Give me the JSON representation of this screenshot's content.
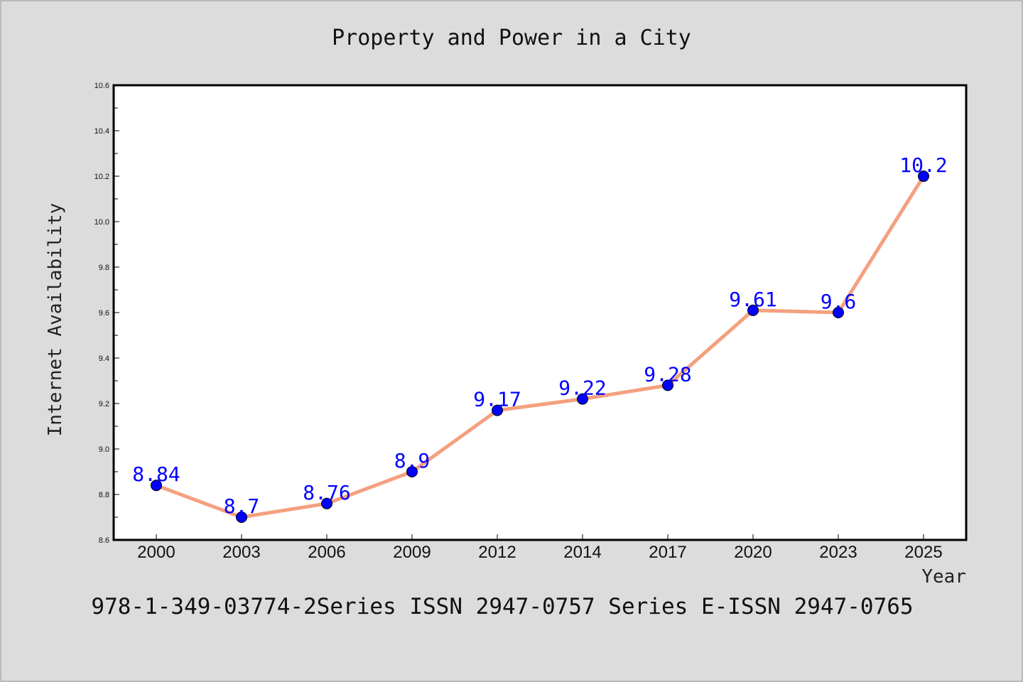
{
  "chart_data": {
    "type": "line",
    "title": "Property and Power in a City",
    "xlabel": "Year",
    "ylabel": "Internet Availability",
    "categories": [
      "2000",
      "2003",
      "2006",
      "2009",
      "2012",
      "2014",
      "2017",
      "2020",
      "2023",
      "2025"
    ],
    "values": [
      8.84,
      8.7,
      8.76,
      8.9,
      9.17,
      9.22,
      9.28,
      9.61,
      9.6,
      10.2
    ],
    "data_labels": [
      "8.84",
      "8.7",
      "8.76",
      "8.9",
      "9.17",
      "9.22",
      "9.28",
      "9.61",
      "9.6",
      "10.2"
    ],
    "ylim": [
      8.6,
      10.6
    ],
    "yticks": [
      "8.6",
      "8.8",
      "9.0",
      "9.2",
      "9.4",
      "9.6",
      "9.8",
      "10.0",
      "10.2",
      "10.4",
      "10.6"
    ],
    "line_color": "#f4a07f",
    "marker_color": "#0000ff",
    "label_color": "#0000ff",
    "grid": false
  },
  "footer": "978-1-349-03774-2Series ISSN 2947-0757 Series E-ISSN 2947-0765"
}
